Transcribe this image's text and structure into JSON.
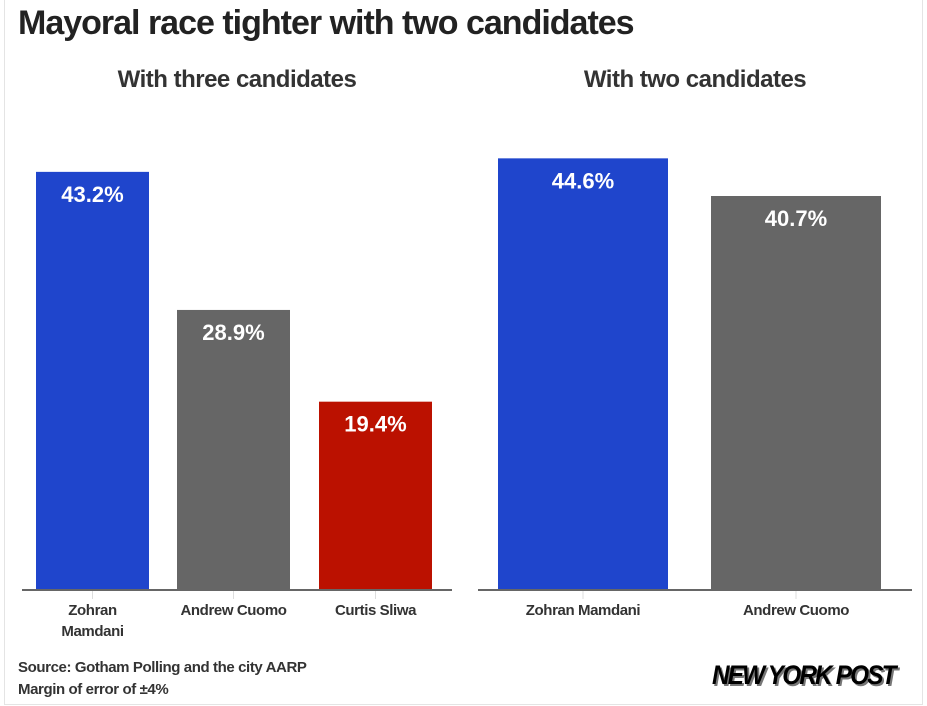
{
  "title": "Mayoral race tighter with two candidates",
  "chart_data": [
    {
      "type": "bar",
      "title": "With three candidates",
      "categories": [
        "Zohran Mamdani",
        "Andrew Cuomo",
        "Curtis Sliwa"
      ],
      "category_lines": [
        [
          "Zohran",
          "Mamdani"
        ],
        [
          "Andrew Cuomo"
        ],
        [
          "Curtis Sliwa"
        ]
      ],
      "values": [
        43.2,
        28.9,
        19.4
      ],
      "labels": [
        "43.2%",
        "28.9%",
        "19.4%"
      ],
      "colors": [
        "#1f45cc",
        "#666666",
        "#bb1100"
      ],
      "ylim": [
        0,
        46.5
      ],
      "grid": false
    },
    {
      "type": "bar",
      "title": "With two candidates",
      "categories": [
        "Zohran Mamdani",
        "Andrew Cuomo"
      ],
      "category_lines": [
        [
          "Zohran Mamdani"
        ],
        [
          "Andrew Cuomo"
        ]
      ],
      "values": [
        44.6,
        40.7
      ],
      "labels": [
        "44.6%",
        "40.7%"
      ],
      "colors": [
        "#1f45cc",
        "#666666"
      ],
      "ylim": [
        0,
        46.5
      ],
      "grid": false
    }
  ],
  "source": "Source: Gotham Polling and the city AARP",
  "margin_note": "Margin of error of ±4%",
  "logo": "NEW YORK POST"
}
